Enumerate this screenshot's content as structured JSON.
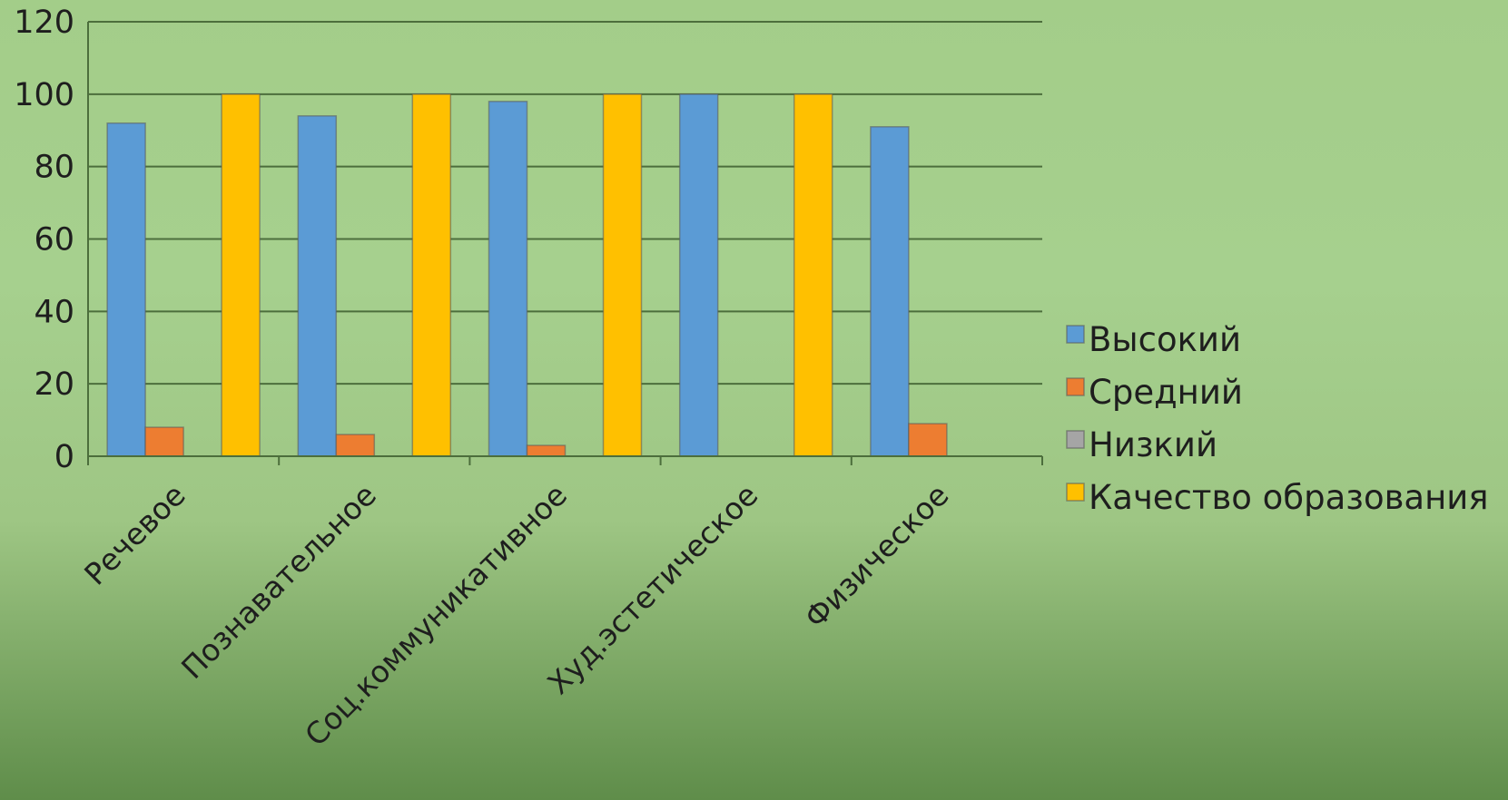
{
  "chart_data": {
    "type": "bar",
    "categories": [
      "Речевое",
      "Познавательное",
      "Соц.коммуникативное",
      "Худ.эстетическое",
      "Физическое"
    ],
    "series": [
      {
        "name": "Высокий",
        "color": "#5b9bd5",
        "values": [
          92,
          94,
          98,
          100,
          91
        ]
      },
      {
        "name": "Средний",
        "color": "#ed7d31",
        "values": [
          8,
          6,
          3,
          0,
          9
        ]
      },
      {
        "name": "Низкий",
        "color": "#a5a5a5",
        "values": [
          0,
          0,
          0,
          0,
          0
        ]
      },
      {
        "name": "Качество образования",
        "color": "#ffc000",
        "values": [
          100,
          100,
          100,
          100,
          null
        ]
      }
    ],
    "ylim": [
      0,
      120
    ],
    "yticks": [
      "0",
      "20",
      "40",
      "60",
      "80",
      "100",
      "120"
    ],
    "grid": true,
    "legend_position": "right"
  }
}
